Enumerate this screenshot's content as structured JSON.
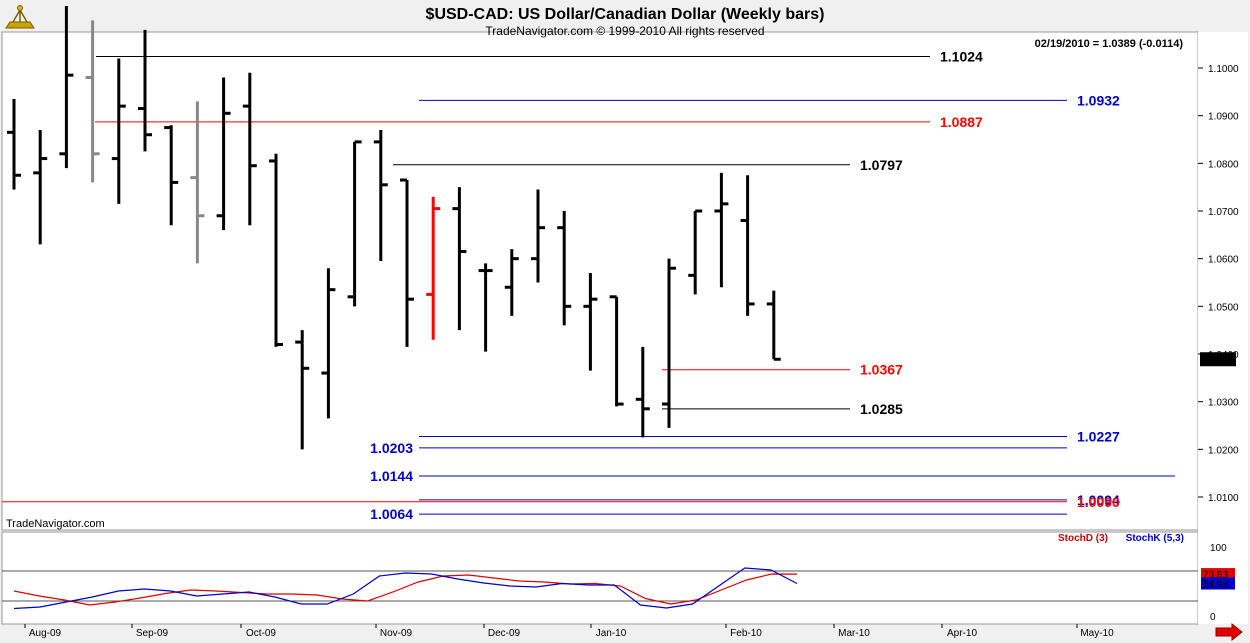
{
  "header": {
    "title": "$USD-CAD:  US Dollar/Canadian Dollar  (Weekly bars)",
    "copyright": "TradeNavigator.com © 1999-2010 All rights reserved",
    "quote": "02/19/2010 = 1.0389 (-0.0114)",
    "watermark": "TradeNavigator.com"
  },
  "colors": {
    "price_bar": "#000000",
    "grey_bar": "#888888",
    "highlight_bar": "#ff0000",
    "level_black": "#000000",
    "level_red": "#ff0000",
    "level_blue": "#0000cc",
    "stoch_d": "#e00000",
    "stoch_k": "#0000cc",
    "background": "#ffffff"
  },
  "chart_data": [
    {
      "type": "ohlc",
      "title": "$USD-CAD:  US Dollar/Canadian Dollar  (Weekly bars)",
      "x_tick_labels": [
        "Aug-09",
        "Sep-09",
        "Oct-09",
        "Nov-09",
        "Dec-09",
        "Jan-10",
        "Feb-10",
        "Mar-10",
        "Apr-10",
        "May-10"
      ],
      "y_ticks": [
        1.01,
        1.02,
        1.03,
        1.04,
        1.05,
        1.06,
        1.07,
        1.08,
        1.09,
        1.1
      ],
      "y_tick_labels": [
        "1.0100",
        "1.0200",
        "1.0300",
        "1.0400",
        "1.0500",
        "1.0600",
        "1.0700",
        "1.0800",
        "1.0900",
        "1.1000"
      ],
      "ylim": [
        1.0055,
        1.1095
      ],
      "grid": false,
      "last_price_label": "1.0389",
      "bars": [
        {
          "h": 1.0935,
          "l": 1.0745,
          "o": 1.0865,
          "c": 1.0775,
          "color": "black"
        },
        {
          "h": 1.087,
          "l": 1.063,
          "o": 1.078,
          "c": 1.081,
          "color": "black"
        },
        {
          "h": 1.113,
          "l": 1.079,
          "o": 1.082,
          "c": 1.0985,
          "color": "black"
        },
        {
          "h": 1.11,
          "l": 1.076,
          "o": 1.098,
          "c": 1.082,
          "color": "grey"
        },
        {
          "h": 1.102,
          "l": 1.0715,
          "o": 1.081,
          "c": 1.092,
          "color": "black"
        },
        {
          "h": 1.108,
          "l": 1.0825,
          "o": 1.0915,
          "c": 1.086,
          "color": "black"
        },
        {
          "h": 1.088,
          "l": 1.067,
          "o": 1.0875,
          "c": 1.076,
          "color": "black"
        },
        {
          "h": 1.093,
          "l": 1.059,
          "o": 1.077,
          "c": 1.069,
          "color": "grey"
        },
        {
          "h": 1.098,
          "l": 1.066,
          "o": 1.069,
          "c": 1.0905,
          "color": "black"
        },
        {
          "h": 1.099,
          "l": 1.067,
          "o": 1.092,
          "c": 1.0795,
          "color": "black"
        },
        {
          "h": 1.082,
          "l": 1.0415,
          "o": 1.0805,
          "c": 1.042,
          "color": "black"
        },
        {
          "h": 1.045,
          "l": 1.02,
          "o": 1.0425,
          "c": 1.037,
          "color": "black"
        },
        {
          "h": 1.058,
          "l": 1.0265,
          "o": 1.036,
          "c": 1.0535,
          "color": "black"
        },
        {
          "h": 1.0845,
          "l": 1.05,
          "o": 1.052,
          "c": 1.0845,
          "color": "black"
        },
        {
          "h": 1.087,
          "l": 1.0595,
          "o": 1.0845,
          "c": 1.0755,
          "color": "black"
        },
        {
          "h": 1.0765,
          "l": 1.0415,
          "o": 1.0765,
          "c": 1.0515,
          "color": "black"
        },
        {
          "h": 1.073,
          "l": 1.043,
          "o": 1.0525,
          "c": 1.0705,
          "color": "red"
        },
        {
          "h": 1.075,
          "l": 1.045,
          "o": 1.0705,
          "c": 1.0615,
          "color": "black"
        },
        {
          "h": 1.059,
          "l": 1.0405,
          "o": 1.0575,
          "c": 1.0575,
          "color": "black"
        },
        {
          "h": 1.062,
          "l": 1.048,
          "o": 1.054,
          "c": 1.06,
          "color": "black"
        },
        {
          "h": 1.0745,
          "l": 1.055,
          "o": 1.06,
          "c": 1.0665,
          "color": "black"
        },
        {
          "h": 1.07,
          "l": 1.046,
          "o": 1.0665,
          "c": 1.05,
          "color": "black"
        },
        {
          "h": 1.057,
          "l": 1.0365,
          "o": 1.05,
          "c": 1.0515,
          "color": "black"
        },
        {
          "h": 1.052,
          "l": 1.029,
          "o": 1.052,
          "c": 1.0295,
          "color": "black"
        },
        {
          "h": 1.0415,
          "l": 1.0225,
          "o": 1.0305,
          "c": 1.0285,
          "color": "black"
        },
        {
          "h": 1.06,
          "l": 1.0245,
          "o": 1.0295,
          "c": 1.058,
          "color": "black"
        },
        {
          "h": 1.07,
          "l": 1.0525,
          "o": 1.0565,
          "c": 1.07,
          "color": "black"
        },
        {
          "h": 1.078,
          "l": 1.054,
          "o": 1.07,
          "c": 1.0715,
          "color": "black"
        },
        {
          "h": 1.0775,
          "l": 1.048,
          "o": 1.068,
          "c": 1.0505,
          "color": "black"
        },
        {
          "h": 1.0533,
          "l": 1.0389,
          "o": 1.0505,
          "c": 1.0389,
          "color": "black"
        }
      ],
      "levels": [
        {
          "label": "1.1024",
          "value": 1.1024,
          "color": "black",
          "label_side": "right"
        },
        {
          "label": "1.0932",
          "value": 1.0932,
          "color": "blue",
          "label_side": "right"
        },
        {
          "label": "1.0887",
          "value": 1.0887,
          "color": "red",
          "label_side": "right"
        },
        {
          "label": "1.0797",
          "value": 1.0797,
          "color": "black",
          "label_side": "right"
        },
        {
          "label": "1.0367",
          "value": 1.0367,
          "color": "red",
          "label_side": "right"
        },
        {
          "label": "1.0285",
          "value": 1.0285,
          "color": "black",
          "label_side": "right"
        },
        {
          "label": "1.0227",
          "value": 1.0227,
          "color": "blue",
          "label_side": "right"
        },
        {
          "label": "1.0203",
          "value": 1.0203,
          "color": "blue",
          "label_side": "left"
        },
        {
          "label": "1.0144",
          "value": 1.0144,
          "color": "blue",
          "label_side": "left"
        },
        {
          "label": "1.0094",
          "value": 1.0094,
          "color": "blue",
          "label_side": "right"
        },
        {
          "label": "1.0090",
          "value": 1.009,
          "color": "red",
          "label_side": "right"
        },
        {
          "label": "1.0064",
          "value": 1.0064,
          "color": "blue",
          "label_side": "left"
        }
      ]
    },
    {
      "type": "line",
      "legend": [
        "StochD (3)",
        "StochK (5,3)"
      ],
      "ylim": [
        0,
        100
      ],
      "y_tick_labels": [
        "100",
        "0"
      ],
      "reference_lines": [
        80,
        20
      ],
      "last_values": {
        "d": "73.83",
        "k": "54.98"
      },
      "series": [
        {
          "name": "StochD (3)",
          "color": "red",
          "values": [
            40,
            30,
            22,
            12,
            18,
            26,
            35,
            42,
            40,
            37,
            34,
            34,
            32,
            24,
            20,
            38,
            58,
            70,
            72,
            66,
            60,
            58,
            54,
            55,
            50,
            25,
            14,
            22,
            42,
            62,
            74,
            73.83
          ]
        },
        {
          "name": "StochK (5,3)",
          "color": "blue",
          "values": [
            5,
            8,
            18,
            28,
            40,
            44,
            40,
            30,
            34,
            38,
            28,
            14,
            14,
            34,
            70,
            76,
            74,
            64,
            56,
            50,
            48,
            55,
            52,
            52,
            12,
            6,
            14,
            50,
            86,
            82,
            54.98
          ]
        }
      ]
    }
  ]
}
